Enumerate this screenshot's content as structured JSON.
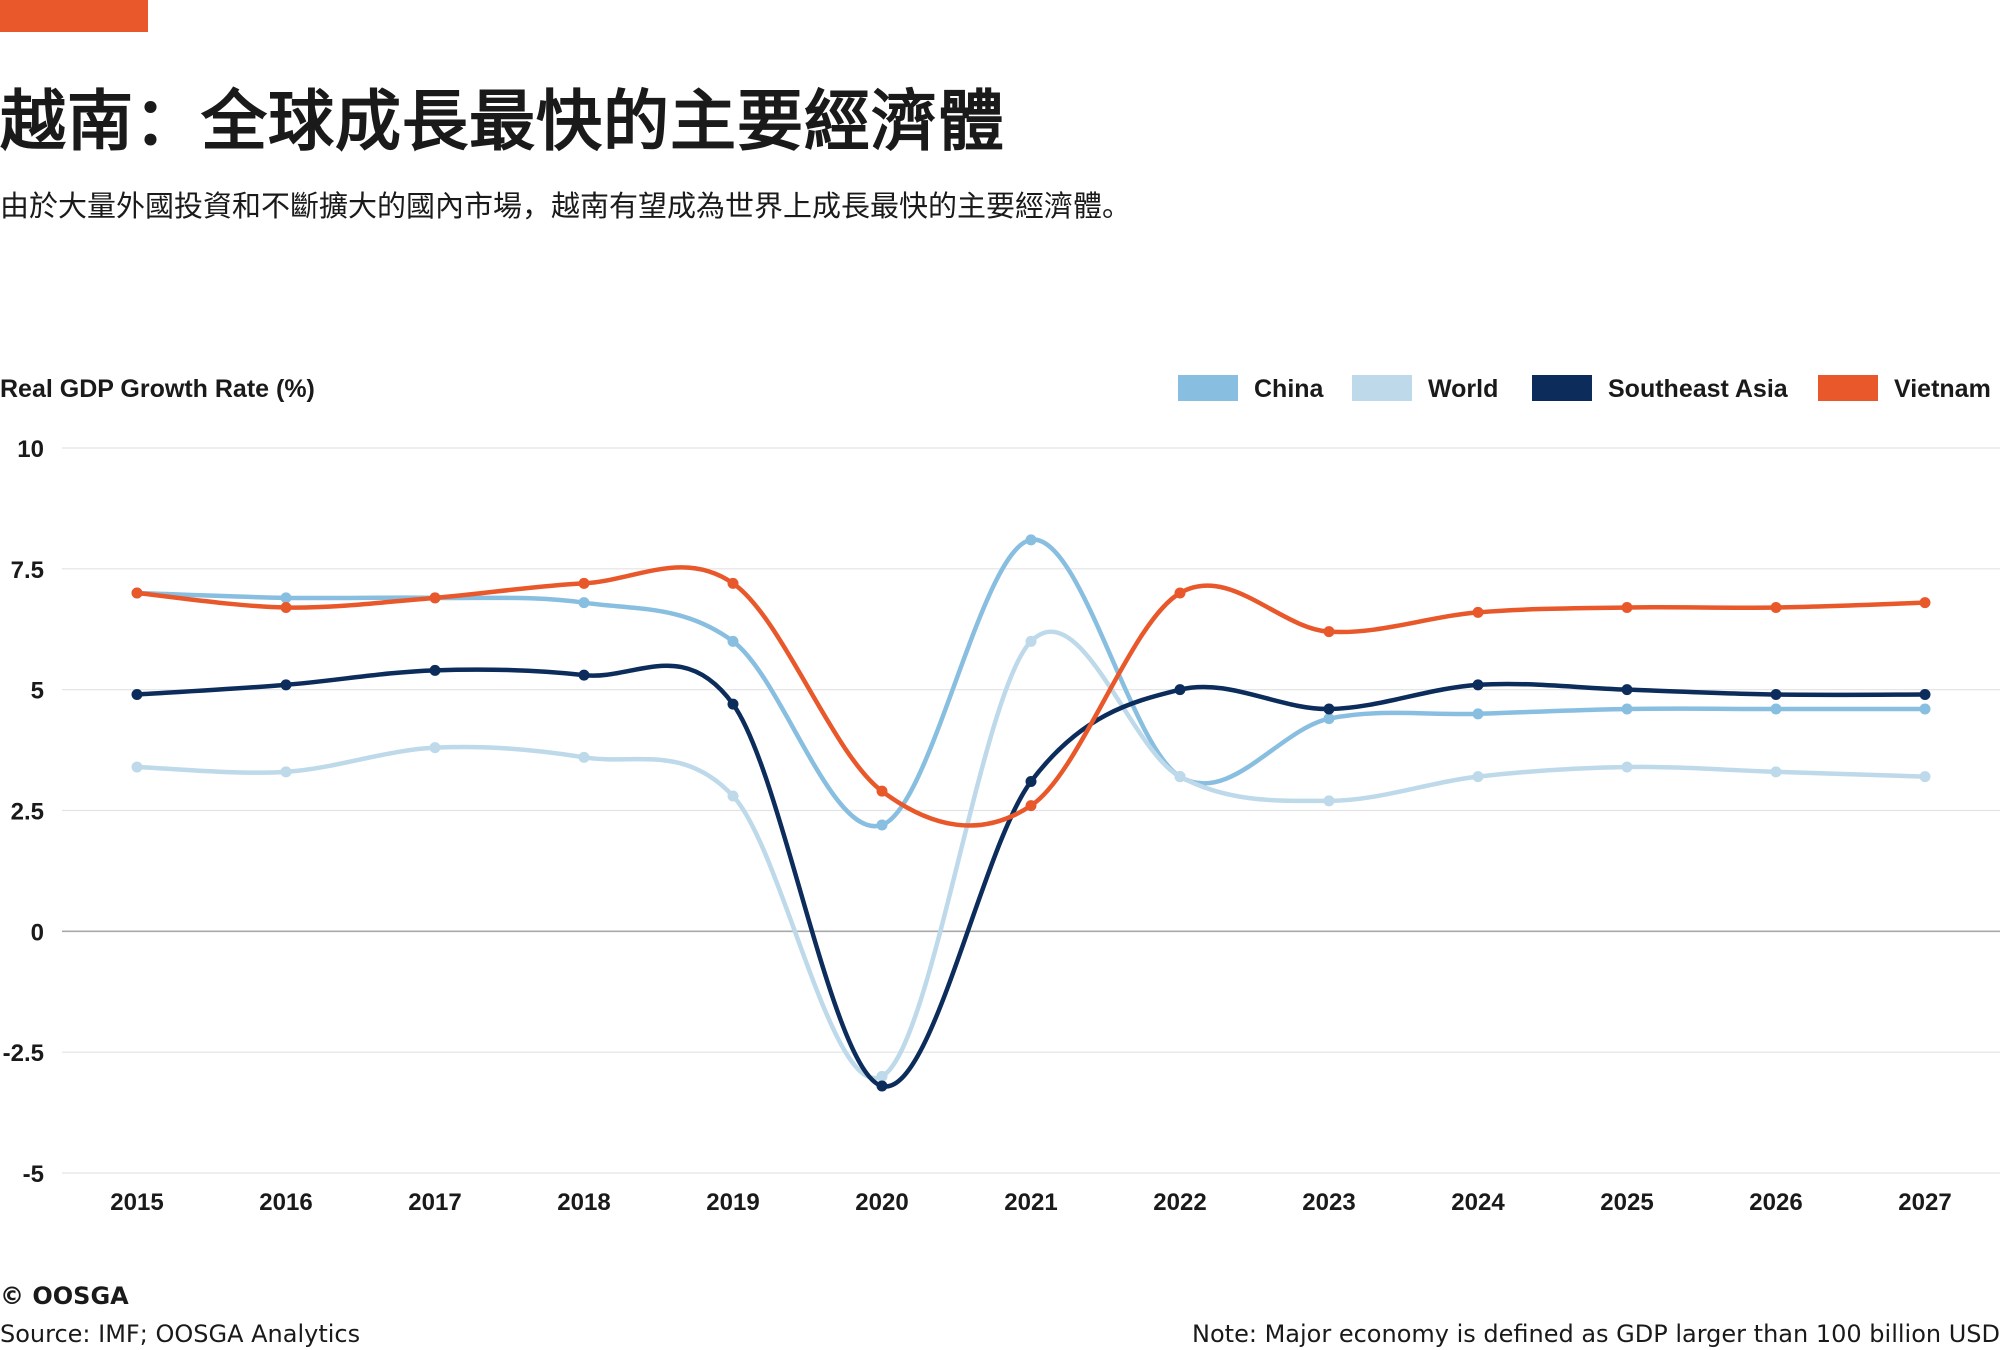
{
  "header": {
    "accent_color": "#e8582a",
    "title": "越南：全球成長最快的主要經濟體",
    "subtitle": "由於大量外國投資和不斷擴大的國內市場，越南有望成為世界上成長最快的主要經濟體。"
  },
  "chart_data": {
    "type": "line",
    "title": "",
    "ylabel": "Real GDP Growth Rate (%)",
    "xlabel": "",
    "ylim": [
      -5,
      10
    ],
    "yticks": [
      10,
      7.5,
      5,
      2.5,
      0,
      -2.5,
      -5
    ],
    "ytick_labels": [
      "10",
      "7.5",
      "5",
      "2.5",
      "0",
      "-2.5",
      "-5"
    ],
    "grid": true,
    "legend_position": "top-right",
    "curve": "smooth",
    "categories": [
      "2015",
      "2016",
      "2017",
      "2018",
      "2019",
      "2020",
      "2021",
      "2022",
      "2023",
      "2024",
      "2025",
      "2026",
      "2027"
    ],
    "series": [
      {
        "name": "China",
        "color": "#88bee0",
        "values": [
          7.0,
          6.9,
          6.9,
          6.8,
          6.0,
          2.2,
          8.1,
          3.2,
          4.4,
          4.5,
          4.6,
          4.6,
          4.6
        ]
      },
      {
        "name": "World",
        "color": "#bdd9ea",
        "values": [
          3.4,
          3.3,
          3.8,
          3.6,
          2.8,
          -3.0,
          6.0,
          3.2,
          2.7,
          3.2,
          3.4,
          3.3,
          3.2
        ]
      },
      {
        "name": "Southeast Asia",
        "color": "#0c2c5c",
        "values": [
          4.9,
          5.1,
          5.4,
          5.3,
          4.7,
          -3.2,
          3.1,
          5.0,
          4.6,
          5.1,
          5.0,
          4.9,
          4.9
        ]
      },
      {
        "name": "Vietnam",
        "color": "#e8582a",
        "values": [
          7.0,
          6.7,
          6.9,
          7.2,
          7.2,
          2.9,
          2.6,
          7.0,
          6.2,
          6.6,
          6.7,
          6.7,
          6.8
        ]
      }
    ]
  },
  "footer": {
    "brand": "© OOSGA",
    "source": "Source: IMF; OOSGA Analytics",
    "note": "Note: Major economy is defined as GDP larger than 100 billion USD"
  }
}
